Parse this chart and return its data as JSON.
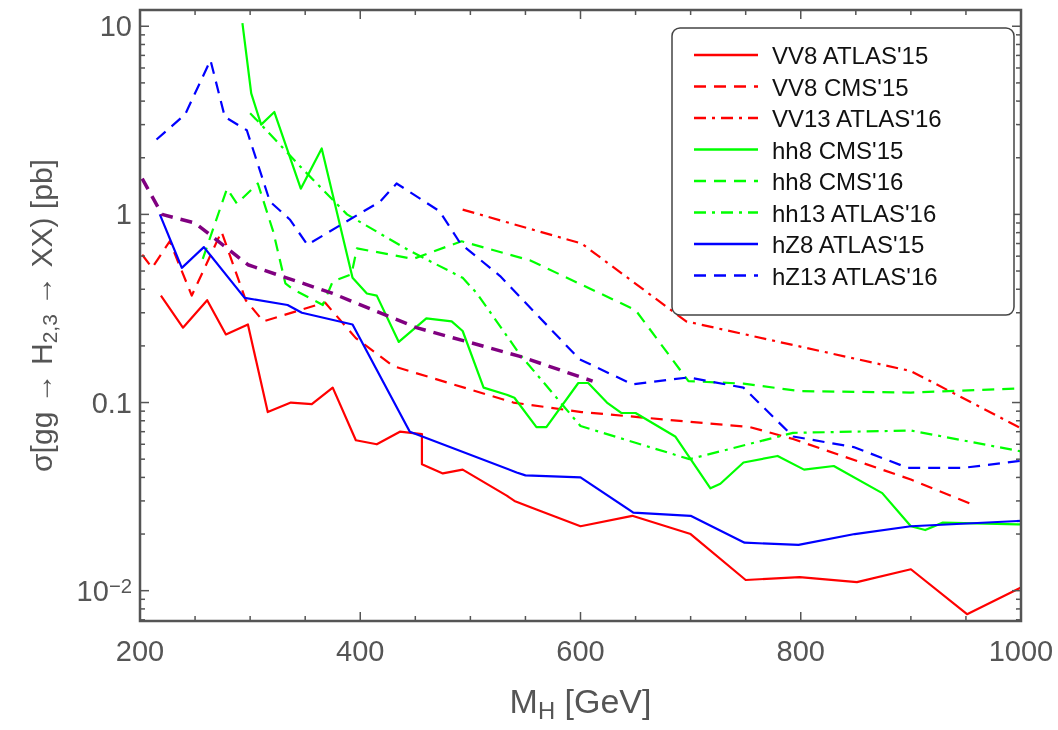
{
  "chart_data": {
    "type": "line",
    "xlabel": "M$_{H}$ [GeV]",
    "ylabel": "σ[gg → H$_{2,3}$ → XX) [pb]",
    "log": true,
    "legend": "top right",
    "grid": false,
    "xlim": [
      200,
      1000
    ],
    "ylim": [
      0.0069,
      12.2
    ],
    "xticks": [
      200,
      {
        "value": 250,
        "label": null
      },
      {
        "value": 300,
        "label": null
      },
      {
        "value": 350,
        "label": null
      },
      400,
      {
        "value": 450,
        "label": null
      },
      {
        "value": 500,
        "label": null
      },
      {
        "value": 550,
        "label": null
      },
      600,
      {
        "value": 650,
        "label": null
      },
      {
        "value": 700,
        "label": null
      },
      {
        "value": 750,
        "label": null
      },
      800,
      {
        "value": 850,
        "label": null
      },
      {
        "value": 900,
        "label": null
      },
      {
        "value": 950,
        "label": null
      },
      1000
    ],
    "yticks": [
      {
        "value": 0.007,
        "label": null
      },
      {
        "value": 0.008,
        "label": null
      },
      {
        "value": 0.009,
        "label": null
      },
      {
        "value": 0.01,
        "label": "10$^{−2}$"
      },
      {
        "value": 0.02,
        "label": null
      },
      {
        "value": 0.03,
        "label": null
      },
      {
        "value": 0.04,
        "label": null
      },
      {
        "value": 0.05,
        "label": null
      },
      {
        "value": 0.06,
        "label": null
      },
      {
        "value": 0.07,
        "label": null
      },
      {
        "value": 0.08,
        "label": null
      },
      {
        "value": 0.09,
        "label": null
      },
      0.1,
      {
        "value": 0.2,
        "label": null
      },
      {
        "value": 0.3,
        "label": null
      },
      {
        "value": 0.4,
        "label": null
      },
      {
        "value": 0.5,
        "label": null
      },
      {
        "value": 0.6,
        "label": null
      },
      {
        "value": 0.7,
        "label": null
      },
      {
        "value": 0.8,
        "label": null
      },
      {
        "value": 0.9,
        "label": null
      },
      1,
      {
        "value": 2,
        "label": null
      },
      {
        "value": 3,
        "label": null
      },
      {
        "value": 4,
        "label": null
      },
      {
        "value": 5,
        "label": null
      },
      {
        "value": 6,
        "label": null
      },
      {
        "value": 7,
        "label": null
      },
      {
        "value": 8,
        "label": null
      },
      {
        "value": 9,
        "label": null
      },
      10
    ],
    "series": [
      {
        "name": "VV8 ATLAS'15",
        "color": "#ff0000",
        "line_style": "solid",
        "x": [
          219,
          239,
          261,
          278,
          298,
          316,
          337,
          356,
          375,
          396,
          415,
          436,
          456,
          456,
          475,
          493,
          533,
          540,
          560,
          600,
          647,
          700,
          750,
          799,
          851,
          900,
          951,
          1000
        ],
        "values": [
          0.37,
          0.25,
          0.35,
          0.23,
          0.26,
          0.089,
          0.1,
          0.098,
          0.12,
          0.063,
          0.06,
          0.07,
          0.068,
          0.047,
          0.042,
          0.044,
          0.032,
          0.03,
          0.027,
          0.022,
          0.025,
          0.02,
          0.0114,
          0.0118,
          0.0111,
          0.013,
          0.0075,
          0.0104
        ]
      },
      {
        "name": "VV8 CMS'15",
        "color": "#ff0000",
        "line_style": "dashed",
        "x": [
          202,
          211,
          227,
          247,
          274,
          296,
          312,
          368,
          396,
          430,
          539,
          601,
          754,
          793,
          900,
          954
        ],
        "values": [
          0.61,
          0.52,
          0.72,
          0.37,
          0.81,
          0.35,
          0.27,
          0.34,
          0.22,
          0.156,
          0.1,
          0.089,
          0.074,
          0.064,
          0.039,
          0.029
        ]
      },
      {
        "name": "VV13 ATLAS'16",
        "color": "#ff0000",
        "line_style": "dashdot",
        "x": [
          493,
          601,
          696,
          900,
          1000
        ],
        "values": [
          1.06,
          0.7,
          0.27,
          0.147,
          0.073
        ]
      },
      {
        "name": "hh8 CMS'15",
        "color": "#00ff00",
        "line_style": "solid",
        "x": [
          293,
          301,
          310,
          322,
          346,
          365,
          393,
          406,
          415,
          435,
          460,
          483,
          493,
          512,
          533,
          540,
          560,
          569,
          598,
          607,
          624,
          637,
          650,
          686,
          718,
          727,
          748,
          779,
          803,
          830,
          874,
          900,
          913,
          929,
          1000
        ],
        "values": [
          10.4,
          4.4,
          3.0,
          3.5,
          1.37,
          2.24,
          0.46,
          0.38,
          0.37,
          0.21,
          0.28,
          0.27,
          0.24,
          0.12,
          0.11,
          0.106,
          0.074,
          0.074,
          0.127,
          0.127,
          0.1,
          0.088,
          0.088,
          0.066,
          0.035,
          0.037,
          0.048,
          0.052,
          0.044,
          0.046,
          0.033,
          0.022,
          0.021,
          0.023,
          0.0225
        ]
      },
      {
        "name": "hh8 CMS'16",
        "color": "#00ff00",
        "line_style": "dashed",
        "x": [
          257,
          279,
          288,
          307,
          321,
          332,
          339,
          366,
          375,
          392,
          397,
          448,
          492,
          554,
          650,
          698,
          748,
          799,
          900,
          1000
        ],
        "values": [
          0.58,
          1.37,
          1.14,
          1.46,
          0.81,
          0.43,
          0.4,
          0.33,
          0.44,
          0.48,
          0.66,
          0.58,
          0.72,
          0.57,
          0.31,
          0.13,
          0.126,
          0.115,
          0.113,
          0.119
        ]
      },
      {
        "name": "hh13 ATLAS'16",
        "color": "#00ff00",
        "line_style": "dashdot",
        "x": [
          300,
          310,
          347,
          388,
          445,
          493,
          506,
          545,
          600,
          699,
          793,
          900,
          1000
        ],
        "values": [
          3.45,
          3.0,
          1.76,
          1.0,
          0.64,
          0.46,
          0.38,
          0.18,
          0.075,
          0.05,
          0.069,
          0.071,
          0.055
        ]
      },
      {
        "name": "hZ8 ATLAS'15",
        "color": "#0000ff",
        "line_style": "solid",
        "x": [
          218,
          238,
          258,
          295,
          334,
          347,
          393,
          445,
          542,
          550,
          600,
          648,
          700,
          749,
          798,
          849,
          900,
          1000
        ],
        "values": [
          1.0,
          0.52,
          0.67,
          0.36,
          0.33,
          0.3,
          0.26,
          0.07,
          0.0425,
          0.041,
          0.04,
          0.026,
          0.025,
          0.018,
          0.0175,
          0.02,
          0.022,
          0.0235
        ]
      },
      {
        "name": "hZ13 ATLAS'16",
        "color": "#0000ff",
        "line_style": "dashed",
        "x": [
          215,
          241,
          264,
          277,
          297,
          318,
          336,
          352,
          418,
          433,
          472,
          491,
          527,
          599,
          647,
          698,
          748,
          793,
          848,
          897,
          948,
          1000
        ],
        "values": [
          2.5,
          3.4,
          6.6,
          3.3,
          2.8,
          1.17,
          0.94,
          0.69,
          1.17,
          1.46,
          1.04,
          0.7,
          0.47,
          0.17,
          0.125,
          0.136,
          0.12,
          0.066,
          0.058,
          0.045,
          0.045,
          0.049
        ]
      },
      {
        "color": "#800080",
        "line_style": "dashed",
        "x": [
          202,
          220,
          250,
          298,
          375,
          451,
          545,
          611
        ],
        "values": [
          1.55,
          1.0,
          0.9,
          0.54,
          0.38,
          0.25,
          0.176,
          0.13
        ]
      }
    ]
  }
}
